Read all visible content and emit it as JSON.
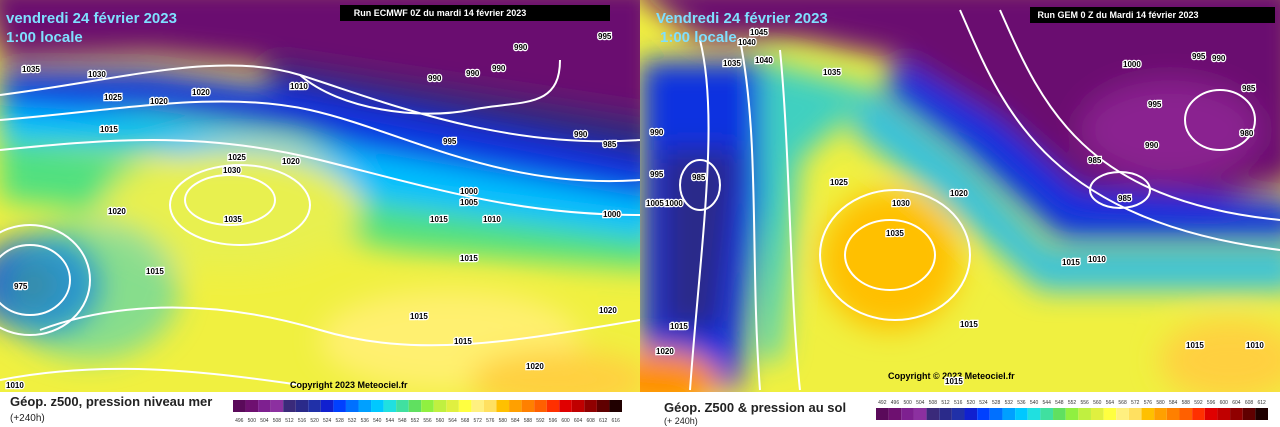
{
  "left": {
    "date": "vendredi 24 février 2023",
    "time": "1:00 locale",
    "run": "Run ECMWF 0Z du mardi 14 février 2023",
    "copyright": "Copyright 2023 Meteociel.fr",
    "legend_title": "Géop. z500, pression niveau mer",
    "legend_lead": "(+240h)",
    "isobars": [
      "1035",
      "1030",
      "1025",
      "1020",
      "1020",
      "1010",
      "990",
      "990",
      "990",
      "990",
      "995",
      "990",
      "985",
      "995",
      "1015",
      "1025",
      "1030",
      "1020",
      "1020",
      "1035",
      "1000",
      "1005",
      "1015",
      "1010",
      "1000",
      "1015",
      "1015",
      "975",
      "1015",
      "1015",
      "1020",
      "1020",
      "1010"
    ],
    "colorbar": {
      "labels": [
        496,
        500,
        504,
        508,
        512,
        516,
        520,
        524,
        528,
        532,
        536,
        540,
        544,
        548,
        552,
        556,
        560,
        564,
        568,
        572,
        576,
        580,
        584,
        588,
        592,
        596,
        600,
        604,
        608,
        612,
        616
      ],
      "colors": [
        "#5a0a5a",
        "#6e1070",
        "#7e2090",
        "#8c30a0",
        "#3a2a7a",
        "#2a2a8a",
        "#2030a8",
        "#1020d0",
        "#0040ff",
        "#0070ff",
        "#00a0ff",
        "#00c8ff",
        "#20e0e0",
        "#40e0a0",
        "#60e060",
        "#90f040",
        "#c0f040",
        "#e0f040",
        "#ffff40",
        "#fff080",
        "#ffe060",
        "#ffc000",
        "#ffa000",
        "#ff8000",
        "#ff6000",
        "#ff3000",
        "#e00000",
        "#c00000",
        "#900000",
        "#600000",
        "#200000"
      ]
    }
  },
  "right": {
    "date": "Vendredi 24 février 2023",
    "time": "1:00 locale",
    "run": "Run GEM 0 Z du Mardi 14 février 2023",
    "copyright": "Copyright © 2023 Meteociel.fr",
    "legend_title": "Géop. Z500 & pression au sol",
    "legend_lead": "(+ 240h)",
    "isobars": [
      "1045",
      "1040",
      "1040",
      "1035",
      "1035",
      "1005",
      "1000",
      "990",
      "995",
      "985",
      "980",
      "995",
      "990",
      "985",
      "985",
      "990",
      "995",
      "985",
      "1000",
      "1010",
      "1015",
      "1025",
      "1030",
      "1035",
      "1020",
      "1015",
      "1010",
      "1015",
      "1015",
      "1020",
      "1015"
    ],
    "colorbar": {
      "labels": [
        492,
        496,
        500,
        504,
        508,
        512,
        516,
        520,
        524,
        528,
        532,
        536,
        540,
        544,
        548,
        552,
        556,
        560,
        564,
        568,
        572,
        576,
        580,
        584,
        588,
        592,
        596,
        600,
        604,
        608,
        612
      ],
      "colors": [
        "#5a0a5a",
        "#6e1070",
        "#7e2090",
        "#8c30a0",
        "#3a2a7a",
        "#2a2a8a",
        "#2030a8",
        "#1020d0",
        "#0040ff",
        "#0070ff",
        "#00a0ff",
        "#00c8ff",
        "#20e0e0",
        "#40e0a0",
        "#60e060",
        "#90f040",
        "#c0f040",
        "#e0f040",
        "#ffff40",
        "#fff080",
        "#ffe060",
        "#ffc000",
        "#ffa000",
        "#ff8000",
        "#ff6000",
        "#ff3000",
        "#e00000",
        "#c00000",
        "#900000",
        "#600000",
        "#200000"
      ]
    }
  }
}
